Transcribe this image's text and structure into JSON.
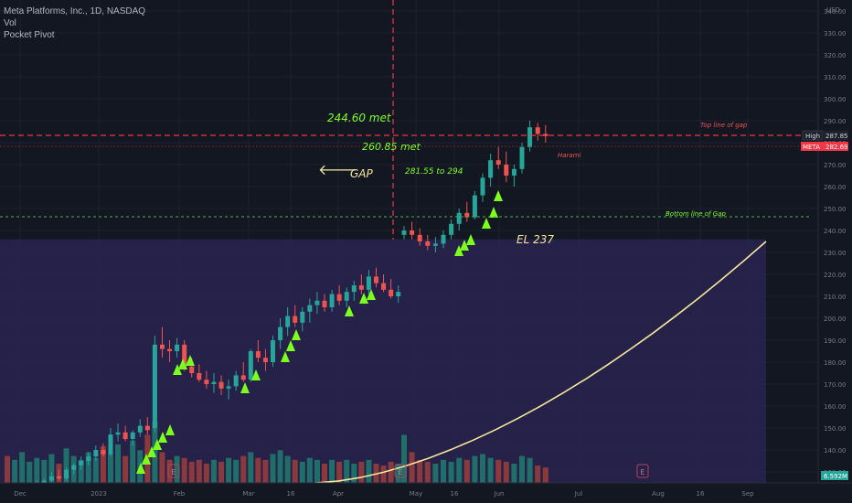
{
  "header": {
    "symbol_line": "Meta Platforms, Inc., 1D, NASDAQ",
    "indicators": [
      "Vol",
      "Pocket Pivot"
    ]
  },
  "price_axis": {
    "currency": "USD",
    "ticks": [
      140,
      150,
      160,
      170,
      180,
      190,
      200,
      210,
      220,
      230,
      240,
      250,
      260,
      270,
      280,
      290,
      300,
      310,
      320,
      330,
      340
    ],
    "high_tag": {
      "label": "High",
      "value": "287.85"
    },
    "last_tag": {
      "label": "META",
      "value": "282.69"
    },
    "volume_tag": "6.592M",
    "visible_ticks_text": [
      "340.00",
      "330.00",
      "320.00",
      "310.00",
      "300.00",
      "290.00",
      "280.00",
      "270.00",
      "260.00",
      "250.00",
      "240.00",
      "230.00",
      "220.00",
      "210.00",
      "200.00",
      "190.00",
      "180.00",
      "170.00",
      "160.00",
      "150.00",
      "140.00",
      "130.00"
    ]
  },
  "time_axis": {
    "labels": [
      "Dec",
      "2023",
      "Feb",
      "Mar",
      "16",
      "Apr",
      "May",
      "16",
      "Jun",
      "Jul",
      "Aug",
      "16",
      "Sep"
    ]
  },
  "annotations": {
    "met1": "244.60  met",
    "met2": "260.85 met",
    "gap_label": "GAP",
    "gap_arrow": "🡐",
    "range_label": "281.55 to 294",
    "el_label": "EL  237",
    "harami": "Harami",
    "top_gap": "Top line of gap",
    "bottom_gap": "Bottom line of Gap",
    "earnings": [
      "E",
      "E",
      "E"
    ]
  },
  "colors": {
    "up": "#26a69a",
    "down": "#ef5350",
    "volume_up": "#1f6e6a",
    "volume_down": "#8a3a3d",
    "zone": "#2a2350",
    "signal": "#7cff1c",
    "curve": "#f5e89a",
    "dashed_red": "#f23645",
    "dashed_green": "#4caf50"
  },
  "chart_data": {
    "type": "candlestick",
    "ylim": [
      125,
      345
    ],
    "ohlc": [
      [
        120,
        121,
        118,
        119
      ],
      [
        119,
        122,
        118,
        121
      ],
      [
        121,
        124,
        120,
        123
      ],
      [
        123,
        125,
        121,
        124
      ],
      [
        124,
        126,
        122,
        125
      ],
      [
        125,
        127,
        123,
        126
      ],
      [
        126,
        130,
        125,
        128
      ],
      [
        128,
        131,
        126,
        127
      ],
      [
        127,
        132,
        126,
        131
      ],
      [
        131,
        134,
        129,
        133
      ],
      [
        133,
        137,
        131,
        135
      ],
      [
        135,
        139,
        133,
        137
      ],
      [
        137,
        142,
        135,
        140
      ],
      [
        140,
        143,
        137,
        138
      ],
      [
        138,
        150,
        137,
        147
      ],
      [
        147,
        152,
        144,
        148
      ],
      [
        148,
        151,
        144,
        145
      ],
      [
        145,
        149,
        142,
        148
      ],
      [
        148,
        154,
        146,
        151
      ],
      [
        151,
        155,
        147,
        149
      ],
      [
        150,
        192,
        148,
        188
      ],
      [
        188,
        196,
        182,
        186
      ],
      [
        186,
        190,
        180,
        185
      ],
      [
        185,
        191,
        182,
        188
      ],
      [
        188,
        190,
        176,
        178
      ],
      [
        178,
        182,
        173,
        175
      ],
      [
        175,
        179,
        171,
        172
      ],
      [
        172,
        176,
        168,
        170
      ],
      [
        170,
        175,
        166,
        171
      ],
      [
        171,
        174,
        165,
        168
      ],
      [
        168,
        172,
        163,
        169
      ],
      [
        169,
        176,
        167,
        174
      ],
      [
        174,
        180,
        171,
        172
      ],
      [
        172,
        186,
        171,
        185
      ],
      [
        185,
        190,
        180,
        182
      ],
      [
        182,
        186,
        176,
        180
      ],
      [
        180,
        192,
        178,
        190
      ],
      [
        190,
        200,
        186,
        196
      ],
      [
        196,
        205,
        192,
        201
      ],
      [
        201,
        206,
        196,
        198
      ],
      [
        198,
        205,
        194,
        203
      ],
      [
        203,
        209,
        198,
        206
      ],
      [
        206,
        212,
        202,
        208
      ],
      [
        208,
        211,
        203,
        205
      ],
      [
        205,
        213,
        203,
        211
      ],
      [
        211,
        215,
        206,
        208
      ],
      [
        208,
        214,
        205,
        212
      ],
      [
        212,
        217,
        208,
        215
      ],
      [
        215,
        220,
        211,
        213
      ],
      [
        213,
        222,
        211,
        219
      ],
      [
        219,
        223,
        214,
        216
      ],
      [
        216,
        220,
        212,
        213
      ],
      [
        213,
        218,
        209,
        210
      ],
      [
        210,
        215,
        207,
        212
      ],
      [
        238,
        242,
        236,
        240
      ],
      [
        240,
        244,
        236,
        238
      ],
      [
        238,
        241,
        233,
        235
      ],
      [
        235,
        238,
        231,
        233
      ],
      [
        233,
        237,
        230,
        234
      ],
      [
        234,
        240,
        232,
        238
      ],
      [
        238,
        245,
        236,
        243
      ],
      [
        243,
        250,
        240,
        248
      ],
      [
        248,
        253,
        244,
        246
      ],
      [
        246,
        258,
        245,
        256
      ],
      [
        256,
        266,
        253,
        264
      ],
      [
        264,
        275,
        260,
        272
      ],
      [
        272,
        278,
        268,
        270
      ],
      [
        270,
        276,
        262,
        265
      ],
      [
        265,
        270,
        260,
        268
      ],
      [
        268,
        280,
        266,
        278
      ],
      [
        278,
        290,
        276,
        287
      ],
      [
        287,
        289,
        281,
        284
      ],
      [
        284,
        288,
        280,
        283
      ]
    ],
    "volume": [
      14,
      12,
      16,
      11,
      13,
      12,
      15,
      10,
      18,
      14,
      12,
      16,
      13,
      19,
      15,
      20,
      14,
      22,
      17,
      25,
      32,
      16,
      12,
      14,
      13,
      11,
      12,
      10,
      12,
      11,
      13,
      12,
      14,
      16,
      13,
      12,
      15,
      17,
      14,
      12,
      11,
      13,
      12,
      10,
      12,
      11,
      12,
      10,
      11,
      12,
      10,
      9,
      11,
      10,
      25,
      16,
      12,
      11,
      10,
      12,
      11,
      13,
      12,
      14,
      15,
      13,
      12,
      11,
      10,
      14,
      13,
      9,
      8
    ]
  }
}
